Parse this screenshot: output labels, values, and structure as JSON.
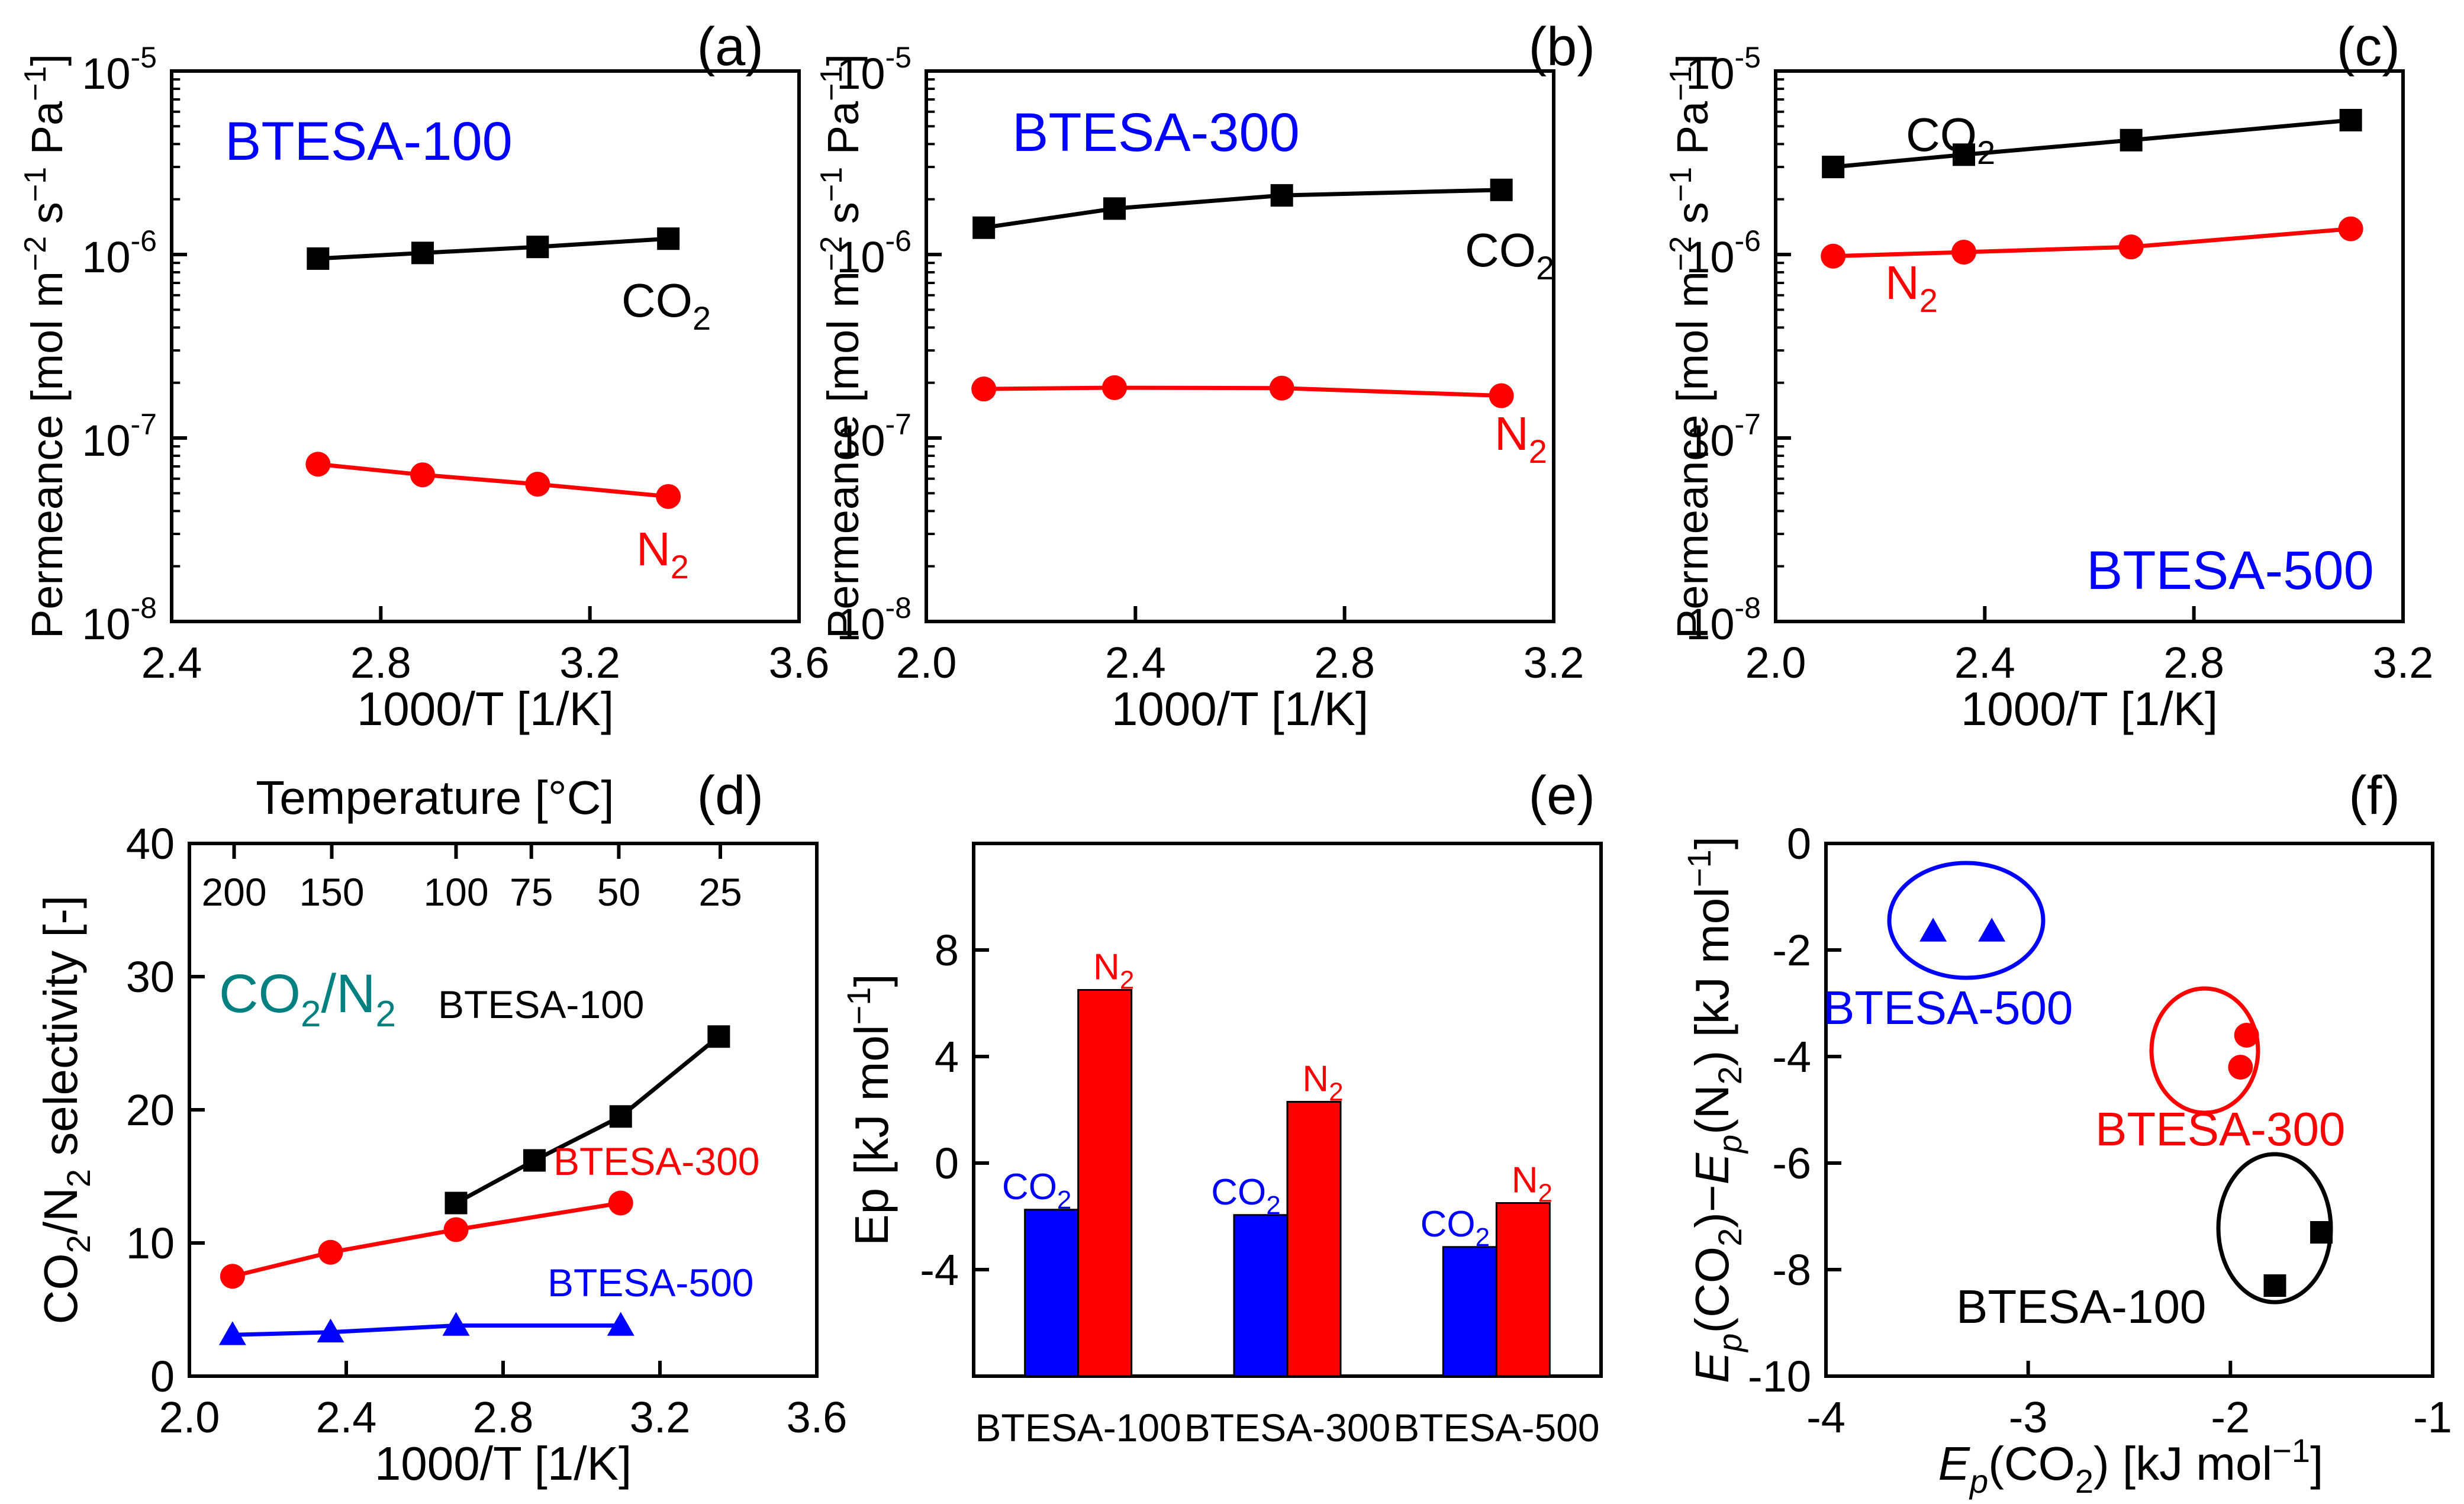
{
  "colors": {
    "black": "#000000",
    "red": "#ff0000",
    "blue": "#0000ff",
    "teal": "#008080",
    "white": "#ffffff"
  },
  "chart_data": [
    {
      "panel": "a",
      "type": "line",
      "scale": "log-y",
      "label": "(a)",
      "title": "BTESA-100",
      "xlabel": "1000/T [1/K]",
      "ylabel": "Permeance [mol m-2 s-1 Pa-1]",
      "xlim": [
        2.4,
        3.6
      ],
      "xticks": [
        "2.4",
        "2.8",
        "3.2",
        "3.6"
      ],
      "ylim_exp": [
        -8,
        -5
      ],
      "yticks": [
        {
          "base": "10",
          "exp": "-8"
        },
        {
          "base": "10",
          "exp": "-7"
        },
        {
          "base": "10",
          "exp": "-6"
        },
        {
          "base": "10",
          "exp": "-5"
        }
      ],
      "series": [
        {
          "name": "CO2",
          "color": "#000000",
          "marker": "square",
          "x": [
            2.68,
            2.88,
            3.1,
            3.35
          ],
          "y": [
            9.5e-07,
            1.02e-06,
            1.1e-06,
            1.22e-06
          ]
        },
        {
          "name": "N2",
          "color": "#ff0000",
          "marker": "circle",
          "x": [
            2.68,
            2.88,
            3.1,
            3.35
          ],
          "y": [
            7.2e-08,
            6.3e-08,
            5.6e-08,
            4.8e-08
          ]
        }
      ],
      "annotations": [
        {
          "base": "CO",
          "sub": "2",
          "color": "#000000"
        },
        {
          "base": "N",
          "sub": "2",
          "color": "#ff0000"
        }
      ]
    },
    {
      "panel": "b",
      "type": "line",
      "scale": "log-y",
      "label": "(b)",
      "title": "BTESA-300",
      "xlabel": "1000/T [1/K]",
      "ylabel": "Permeance [mol m-2 s-1 Pa-1]",
      "xlim": [
        2.0,
        3.2
      ],
      "xticks": [
        "2.0",
        "2.4",
        "2.8",
        "3.2"
      ],
      "ylim_exp": [
        -8,
        -5
      ],
      "yticks": [
        {
          "base": "10",
          "exp": "-8"
        },
        {
          "base": "10",
          "exp": "-7"
        },
        {
          "base": "10",
          "exp": "-6"
        },
        {
          "base": "10",
          "exp": "-5"
        }
      ],
      "series": [
        {
          "name": "CO2",
          "color": "#000000",
          "marker": "square",
          "x": [
            2.11,
            2.36,
            2.68,
            3.1
          ],
          "y": [
            1.4e-06,
            1.78e-06,
            2.1e-06,
            2.25e-06
          ]
        },
        {
          "name": "N2",
          "color": "#ff0000",
          "marker": "circle",
          "x": [
            2.11,
            2.36,
            2.68,
            3.1
          ],
          "y": [
            1.85e-07,
            1.88e-07,
            1.87e-07,
            1.7e-07
          ]
        }
      ],
      "annotations": [
        {
          "base": "CO",
          "sub": "2",
          "color": "#000000"
        },
        {
          "base": "N",
          "sub": "2",
          "color": "#ff0000"
        }
      ]
    },
    {
      "panel": "c",
      "type": "line",
      "scale": "log-y",
      "label": "(c)",
      "title": "BTESA-500",
      "xlabel": "1000/T [1/K]",
      "ylabel": "Permeance [mol m-2 s-1 Pa-1]",
      "xlim": [
        2.0,
        3.2
      ],
      "xticks": [
        "2.0",
        "2.4",
        "2.8",
        "3.2"
      ],
      "ylim_exp": [
        -8,
        -5
      ],
      "yticks": [
        {
          "base": "10",
          "exp": "-8"
        },
        {
          "base": "10",
          "exp": "-7"
        },
        {
          "base": "10",
          "exp": "-6"
        },
        {
          "base": "10",
          "exp": "-5"
        }
      ],
      "series": [
        {
          "name": "CO2",
          "color": "#000000",
          "marker": "square",
          "x": [
            2.11,
            2.36,
            2.68,
            3.1
          ],
          "y": [
            3e-06,
            3.5e-06,
            4.2e-06,
            5.4e-06
          ]
        },
        {
          "name": "N2",
          "color": "#ff0000",
          "marker": "circle",
          "x": [
            2.11,
            2.36,
            2.68,
            3.1
          ],
          "y": [
            9.8e-07,
            1.03e-06,
            1.1e-06,
            1.38e-06
          ]
        }
      ],
      "annotations": [
        {
          "base": "CO",
          "sub": "2",
          "color": "#000000"
        },
        {
          "base": "N",
          "sub": "2",
          "color": "#ff0000"
        }
      ]
    },
    {
      "panel": "d",
      "type": "line",
      "label": "(d)",
      "title": "CO2/N2",
      "title_parts": {
        "a": "CO",
        "b": "2",
        "c": "/N",
        "d": "2"
      },
      "xlabel": "1000/T [1/K]",
      "ylabel": "CO2/N2 selectivity [-]",
      "toplabel": "Temperature [°C]",
      "xlim": [
        2.0,
        3.6
      ],
      "ylim": [
        0,
        40
      ],
      "xticks": [
        "2.0",
        "2.4",
        "2.8",
        "3.2",
        "3.6"
      ],
      "yticks": [
        "0",
        "10",
        "20",
        "30",
        "40"
      ],
      "top_ticks": [
        {
          "label": "200",
          "x": 2.114
        },
        {
          "label": "150",
          "x": 2.363
        },
        {
          "label": "100",
          "x": 2.68
        },
        {
          "label": "75",
          "x": 2.872
        },
        {
          "label": "50",
          "x": 3.095
        },
        {
          "label": "25",
          "x": 3.354
        }
      ],
      "series": [
        {
          "name": "BTESA-100",
          "color": "#000000",
          "marker": "square",
          "x": [
            2.68,
            2.88,
            3.1,
            3.35
          ],
          "y": [
            13,
            16.2,
            19.5,
            25.5
          ]
        },
        {
          "name": "BTESA-300",
          "color": "#ff0000",
          "marker": "circle",
          "x": [
            2.11,
            2.36,
            2.68,
            3.1
          ],
          "y": [
            7.5,
            9.3,
            11,
            13
          ]
        },
        {
          "name": "BTESA-500",
          "color": "#0000ff",
          "marker": "triangle",
          "x": [
            2.11,
            2.36,
            2.68,
            3.1
          ],
          "y": [
            3.1,
            3.3,
            3.8,
            3.8
          ]
        }
      ]
    },
    {
      "panel": "e",
      "type": "bar",
      "label": "(e)",
      "ylabel": "Ep [kJ mol-1]",
      "ylim": [
        -8,
        12
      ],
      "yticks": [
        "-4",
        "0",
        "4",
        "8"
      ],
      "categories": [
        "BTESA-100",
        "BTESA-300",
        "BTESA-500"
      ],
      "series": [
        {
          "name": "CO2",
          "color": "#0000ff",
          "values": [
            -1.75,
            -1.95,
            -3.15
          ]
        },
        {
          "name": "N2",
          "color": "#ff0000",
          "values": [
            6.5,
            2.3,
            -1.5
          ]
        }
      ],
      "bar_labels": [
        {
          "base": "CO",
          "sub": "2",
          "color": "#0000ff"
        },
        {
          "base": "N",
          "sub": "2",
          "color": "#ff0000"
        }
      ]
    },
    {
      "panel": "f",
      "type": "scatter",
      "label": "(f)",
      "xlabel": "Ep(CO2) [kJ mol-1]",
      "ylabel": "Ep(CO2)-Ep(N2) [kJ mol-1]",
      "xlim": [
        -4,
        -1
      ],
      "ylim": [
        -10,
        0
      ],
      "xticks": [
        "-4",
        "-3",
        "-2",
        "-1"
      ],
      "yticks": [
        "-10",
        "-8",
        "-6",
        "-4",
        "-2",
        "0"
      ],
      "series": [
        {
          "name": "BTESA-500",
          "color": "#0000ff",
          "marker": "triangle",
          "x": [
            -3.47,
            -3.18
          ],
          "y": [
            -1.65,
            -1.65
          ]
        },
        {
          "name": "BTESA-300",
          "color": "#ff0000",
          "marker": "circle",
          "x": [
            -1.92,
            -1.95
          ],
          "y": [
            -3.6,
            -4.2
          ]
        },
        {
          "name": "BTESA-100",
          "color": "#000000",
          "marker": "square",
          "x": [
            -1.55,
            -1.78
          ],
          "y": [
            -7.3,
            -8.3
          ]
        }
      ]
    }
  ]
}
